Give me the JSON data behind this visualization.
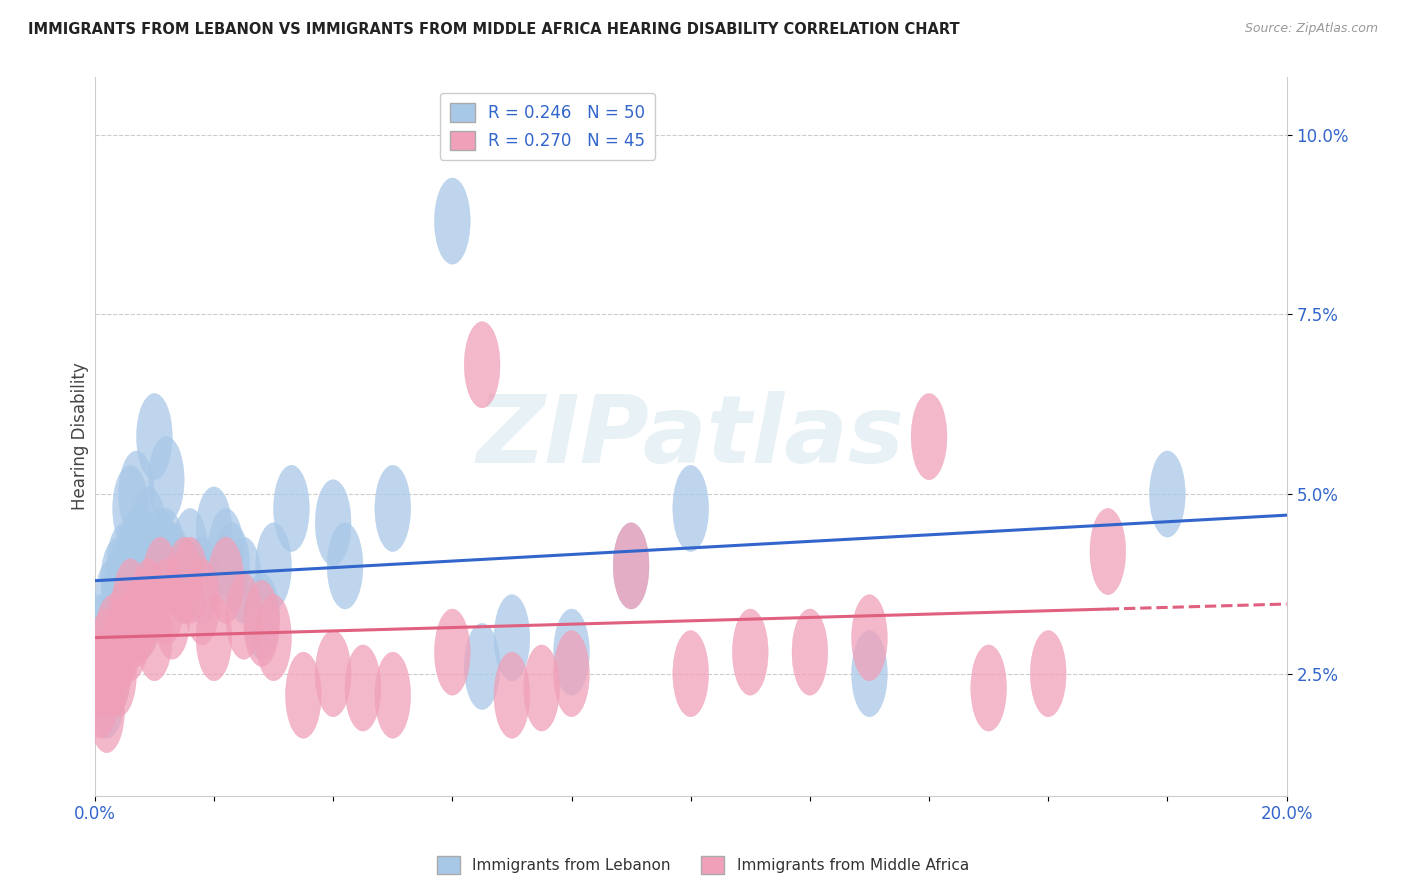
{
  "title": "IMMIGRANTS FROM LEBANON VS IMMIGRANTS FROM MIDDLE AFRICA HEARING DISABILITY CORRELATION CHART",
  "source": "Source: ZipAtlas.com",
  "ylabel": "Hearing Disability",
  "xlim": [
    0.0,
    0.2
  ],
  "ylim": [
    0.008,
    0.108
  ],
  "yticks": [
    0.025,
    0.05,
    0.075,
    0.1
  ],
  "ytick_labels": [
    "2.5%",
    "5.0%",
    "7.5%",
    "10.0%"
  ],
  "xticks": [
    0.0,
    0.02,
    0.04,
    0.06,
    0.08,
    0.1,
    0.12,
    0.14,
    0.16,
    0.18,
    0.2
  ],
  "xtick_labels": [
    "0.0%",
    "",
    "",
    "",
    "",
    "",
    "",
    "",
    "",
    "",
    "20.0%"
  ],
  "legend1_label": "R = 0.246   N = 50",
  "legend2_label": "R = 0.270   N = 45",
  "color_blue": "#A8C8E8",
  "color_pink": "#F0A0B8",
  "trend_blue": "#3366CC",
  "trend_pink": "#E06080",
  "background_color": "#FFFFFF",
  "watermark": "ZIPatlas",
  "lebanon_x": [
    0.001,
    0.001,
    0.002,
    0.002,
    0.003,
    0.003,
    0.003,
    0.004,
    0.004,
    0.004,
    0.005,
    0.005,
    0.005,
    0.006,
    0.006,
    0.006,
    0.007,
    0.007,
    0.007,
    0.008,
    0.008,
    0.009,
    0.009,
    0.01,
    0.01,
    0.011,
    0.012,
    0.012,
    0.013,
    0.015,
    0.016,
    0.018,
    0.02,
    0.022,
    0.023,
    0.025,
    0.028,
    0.03,
    0.033,
    0.04,
    0.042,
    0.05,
    0.06,
    0.065,
    0.07,
    0.08,
    0.09,
    0.1,
    0.13,
    0.18
  ],
  "lebanon_y": [
    0.025,
    0.03,
    0.028,
    0.022,
    0.025,
    0.03,
    0.035,
    0.03,
    0.035,
    0.038,
    0.032,
    0.038,
    0.04,
    0.033,
    0.038,
    0.048,
    0.035,
    0.042,
    0.05,
    0.033,
    0.042,
    0.038,
    0.045,
    0.038,
    0.058,
    0.042,
    0.042,
    0.052,
    0.04,
    0.038,
    0.042,
    0.038,
    0.045,
    0.042,
    0.04,
    0.038,
    0.033,
    0.04,
    0.048,
    0.046,
    0.04,
    0.048,
    0.088,
    0.026,
    0.03,
    0.028,
    0.04,
    0.048,
    0.025,
    0.05
  ],
  "africa_x": [
    0.001,
    0.001,
    0.002,
    0.002,
    0.003,
    0.003,
    0.004,
    0.004,
    0.005,
    0.005,
    0.006,
    0.006,
    0.007,
    0.008,
    0.009,
    0.01,
    0.011,
    0.012,
    0.013,
    0.015,
    0.016,
    0.018,
    0.02,
    0.022,
    0.025,
    0.028,
    0.03,
    0.035,
    0.04,
    0.045,
    0.05,
    0.06,
    0.065,
    0.07,
    0.075,
    0.08,
    0.09,
    0.1,
    0.11,
    0.12,
    0.13,
    0.14,
    0.15,
    0.16,
    0.17
  ],
  "africa_y": [
    0.022,
    0.025,
    0.02,
    0.028,
    0.025,
    0.03,
    0.025,
    0.028,
    0.032,
    0.03,
    0.03,
    0.035,
    0.032,
    0.033,
    0.035,
    0.03,
    0.038,
    0.035,
    0.033,
    0.038,
    0.038,
    0.035,
    0.03,
    0.038,
    0.033,
    0.032,
    0.03,
    0.022,
    0.025,
    0.023,
    0.022,
    0.028,
    0.068,
    0.022,
    0.023,
    0.025,
    0.04,
    0.025,
    0.028,
    0.028,
    0.03,
    0.058,
    0.023,
    0.025,
    0.042
  ]
}
